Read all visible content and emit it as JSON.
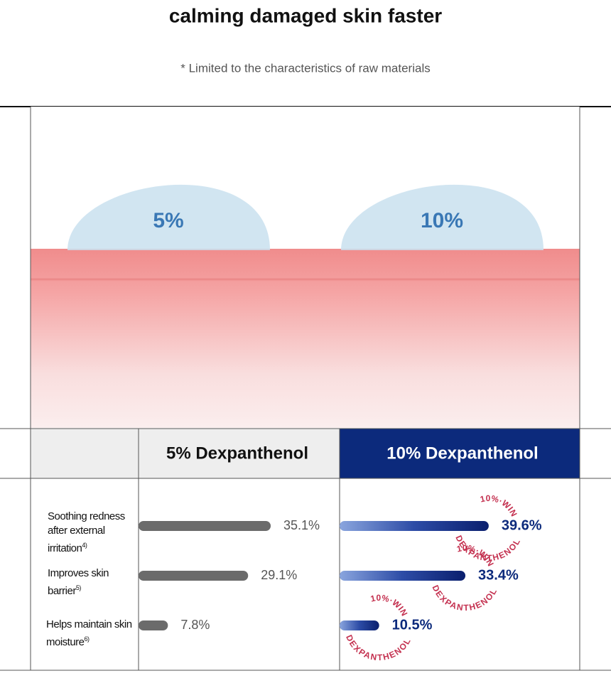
{
  "header": {
    "title": "calming damaged skin faster",
    "note": "* Limited to the characteristics of raw materials"
  },
  "illustration": {
    "drops": [
      "5%",
      "10%"
    ]
  },
  "table": {
    "columns": [
      "5% Dexpanthenol",
      "10% Dexpanthenol"
    ],
    "rows": [
      {
        "label": "Soothing redness after external irritation",
        "sup": "4)",
        "values": [
          35.1,
          39.6
        ],
        "value_labels": [
          "35.1%",
          "39.6%"
        ]
      },
      {
        "label": "Improves skin barrier",
        "sup": "5)",
        "values": [
          29.1,
          33.4
        ],
        "value_labels": [
          "29.1%",
          "33.4%"
        ]
      },
      {
        "label": "Helps maintain skin moisture",
        "sup": "6)",
        "values": [
          7.8,
          10.5
        ],
        "value_labels": [
          "7.8%",
          "10.5%"
        ]
      }
    ]
  },
  "badge": {
    "top": "10%·WIN",
    "bottom": "DEXPANTHENOL"
  }
}
